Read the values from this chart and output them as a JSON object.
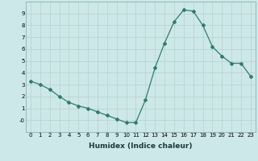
{
  "x": [
    0,
    1,
    2,
    3,
    4,
    5,
    6,
    7,
    8,
    9,
    10,
    11,
    12,
    13,
    14,
    15,
    16,
    17,
    18,
    19,
    20,
    21,
    22,
    23
  ],
  "y": [
    3.3,
    3.0,
    2.6,
    2.0,
    1.5,
    1.2,
    1.0,
    0.7,
    0.4,
    0.1,
    -0.2,
    -0.2,
    1.7,
    4.4,
    6.5,
    8.3,
    9.3,
    9.2,
    8.0,
    6.2,
    5.4,
    4.8,
    4.8,
    3.7
  ],
  "line_color": "#2e7d6e",
  "marker": "D",
  "markersize": 2.0,
  "linewidth": 0.9,
  "xlabel": "Humidex (Indice chaleur)",
  "xlabel_fontsize": 6.5,
  "bg_color": "#cde8e8",
  "grid_color": "#b8d0d0",
  "xlim": [
    -0.5,
    23.5
  ],
  "ylim": [
    -1.0,
    10.0
  ],
  "yticks": [
    0,
    1,
    2,
    3,
    4,
    5,
    6,
    7,
    8,
    9
  ],
  "ytick_labels": [
    "-0",
    "1",
    "2",
    "3",
    "4",
    "5",
    "6",
    "7",
    "8",
    "9"
  ],
  "xticks": [
    0,
    1,
    2,
    3,
    4,
    5,
    6,
    7,
    8,
    9,
    10,
    11,
    12,
    13,
    14,
    15,
    16,
    17,
    18,
    19,
    20,
    21,
    22,
    23
  ],
  "tick_fontsize": 5.0
}
